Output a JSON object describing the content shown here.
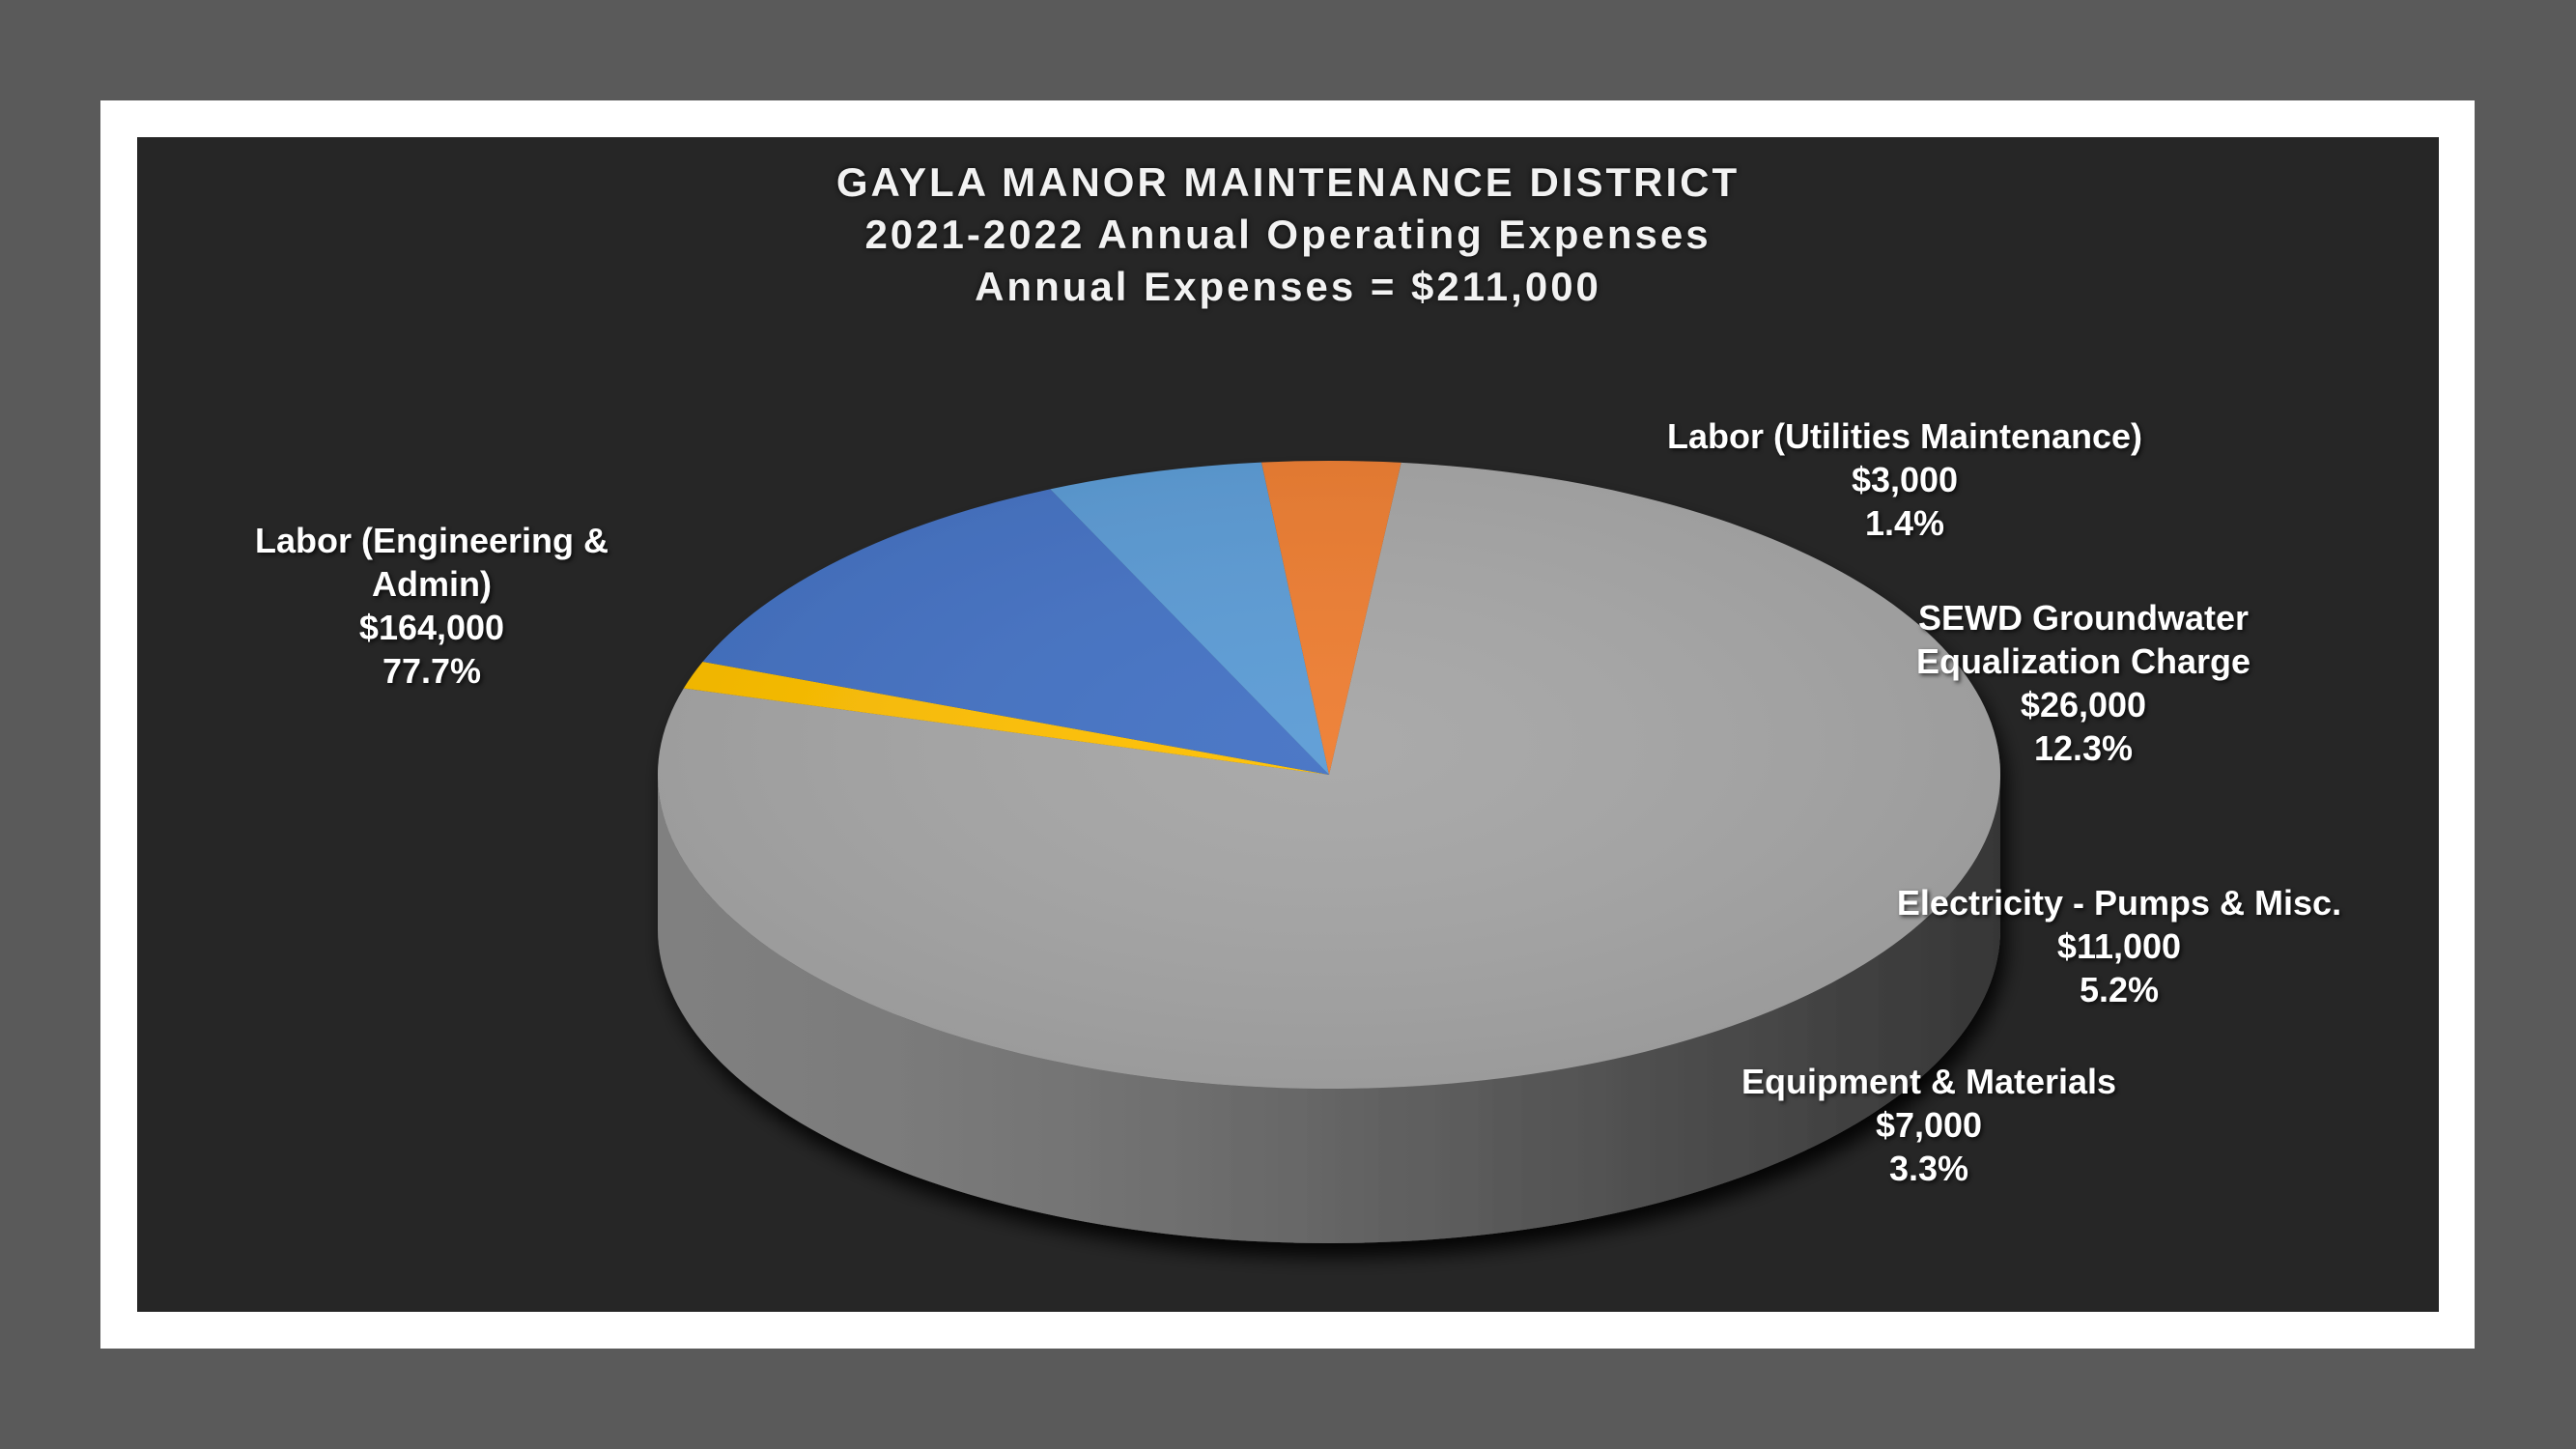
{
  "chart_data": {
    "type": "pie",
    "title": "GAYLA MANOR MAINTENANCE DISTRICT",
    "subtitle": "2021-2022 Annual Operating Expenses",
    "subtitle2": "Annual Expenses = $211,000",
    "slices": [
      {
        "name_lines": [
          "Labor (Engineering &",
          "Admin)"
        ],
        "value": 164000,
        "value_label": "$164,000",
        "percent": 77.7,
        "percent_label": "77.7%",
        "color": "#a6a6a6"
      },
      {
        "name_lines": [
          "Labor (Utilities Maintenance)"
        ],
        "value": 3000,
        "value_label": "$3,000",
        "percent": 1.4,
        "percent_label": "1.4%",
        "color": "#ffc000"
      },
      {
        "name_lines": [
          "SEWD Groundwater",
          "Equalization Charge"
        ],
        "value": 26000,
        "value_label": "$26,000",
        "percent": 12.3,
        "percent_label": "12.3%",
        "color": "#4472c4"
      },
      {
        "name_lines": [
          "Electricity - Pumps & Misc."
        ],
        "value": 11000,
        "value_label": "$11,000",
        "percent": 5.2,
        "percent_label": "5.2%",
        "color": "#5b9bd5"
      },
      {
        "name_lines": [
          "Equipment & Materials"
        ],
        "value": 7000,
        "value_label": "$7,000",
        "percent": 3.3,
        "percent_label": "3.3%",
        "color": "#ed7d31"
      }
    ]
  }
}
